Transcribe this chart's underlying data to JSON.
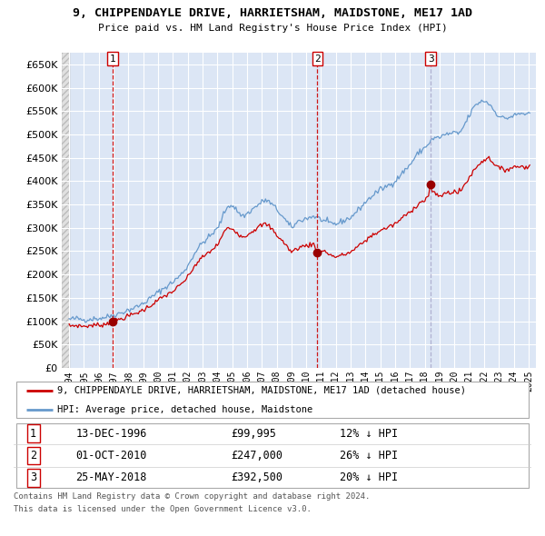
{
  "title": "9, CHIPPENDAYLE DRIVE, HARRIETSHAM, MAIDSTONE, ME17 1AD",
  "subtitle": "Price paid vs. HM Land Registry's House Price Index (HPI)",
  "legend_line1": "9, CHIPPENDAYLE DRIVE, HARRIETSHAM, MAIDSTONE, ME17 1AD (detached house)",
  "legend_line2": "HPI: Average price, detached house, Maidstone",
  "footer1": "Contains HM Land Registry data © Crown copyright and database right 2024.",
  "footer2": "This data is licensed under the Open Government Licence v3.0.",
  "purchases": [
    {
      "num": 1,
      "date": "13-DEC-1996",
      "price": "£99,995",
      "rel": "12% ↓ HPI",
      "year": 1996.95,
      "value": 99995,
      "vline_color": "#cc0000",
      "vline_style": "--"
    },
    {
      "num": 2,
      "date": "01-OCT-2010",
      "price": "£247,000",
      "rel": "26% ↓ HPI",
      "year": 2010.75,
      "value": 247000,
      "vline_color": "#cc0000",
      "vline_style": "--"
    },
    {
      "num": 3,
      "date": "25-MAY-2018",
      "price": "£392,500",
      "rel": "20% ↓ HPI",
      "year": 2018.4,
      "value": 392500,
      "vline_color": "#aaaacc",
      "vline_style": "--"
    }
  ],
  "hpi_color": "#6699cc",
  "price_color": "#cc0000",
  "dot_color": "#990000",
  "background_chart": "#dce6f5",
  "background_hatch": "#e8e8e8",
  "grid_color": "#ffffff",
  "ylim": [
    0,
    675000
  ],
  "yticks": [
    0,
    50000,
    100000,
    150000,
    200000,
    250000,
    300000,
    350000,
    400000,
    450000,
    500000,
    550000,
    600000,
    650000
  ],
  "xlim_start": 1993.5,
  "xlim_end": 2025.5,
  "hatch_end": 1994.08
}
